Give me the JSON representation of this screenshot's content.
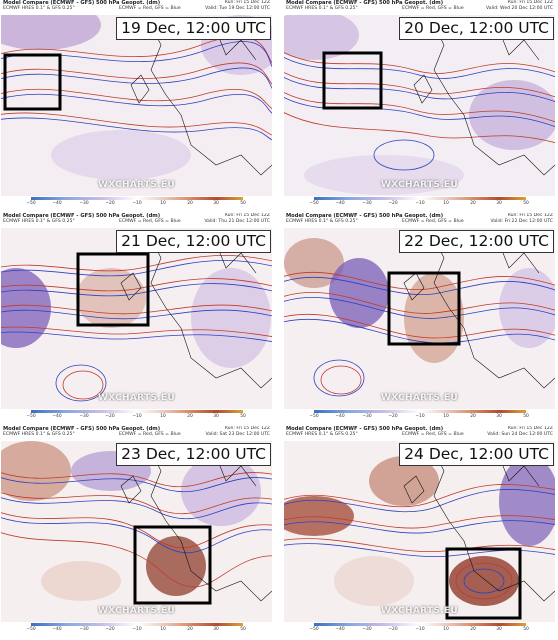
{
  "header": {
    "title": "Model Compare (ECMWF - GFS) 500 hPa Geopot. (dm)",
    "subtitle": "ECMWF HRES 0.1° & GFS 0.25°",
    "legend_note": "ECMWF = Red, GFS = Blue",
    "run": "Run: Fri 15 Dec 12Z"
  },
  "watermark": "WXCHARTS.EU",
  "colorbar": {
    "ticks": [
      "−50",
      "−40",
      "−30",
      "−20",
      "−10",
      "0",
      "10",
      "20",
      "30",
      "40",
      "50"
    ]
  },
  "panels": [
    {
      "stamp": "19 Dec, 12:00 UTC",
      "valid": "Valid: Tue 19 Dec 12:00 UTC",
      "focus_box": "Atlantic west of UK"
    },
    {
      "stamp": "20 Dec, 12:00 UTC",
      "valid": "Valid: Wed 20 Dec 12:00 UTC",
      "focus_box": "Atlantic west of UK"
    },
    {
      "stamp": "21 Dec, 12:00 UTC",
      "valid": "Valid: Thu 21 Dec 12:00 UTC",
      "focus_box": "UK / Ireland"
    },
    {
      "stamp": "22 Dec, 12:00 UTC",
      "valid": "Valid: Fri 22 Dec 12:00 UTC",
      "focus_box": "North Sea / UK"
    },
    {
      "stamp": "23 Dec, 12:00 UTC",
      "valid": "Valid: Sat 23 Dec 12:00 UTC",
      "focus_box": "France / Alps"
    },
    {
      "stamp": "24 Dec, 12:00 UTC",
      "valid": "Valid: Sun 24 Dec 12:00 UTC",
      "focus_box": "Western Mediterranean"
    }
  ],
  "colors": {
    "ecmwf_contour": "#c0392b",
    "gfs_contour": "#2e3fbf",
    "positive_anomaly": "#9c3b2a",
    "negative_anomaly": "#5a3a9a",
    "coastline": "#111111",
    "focus_box": "#000000"
  }
}
